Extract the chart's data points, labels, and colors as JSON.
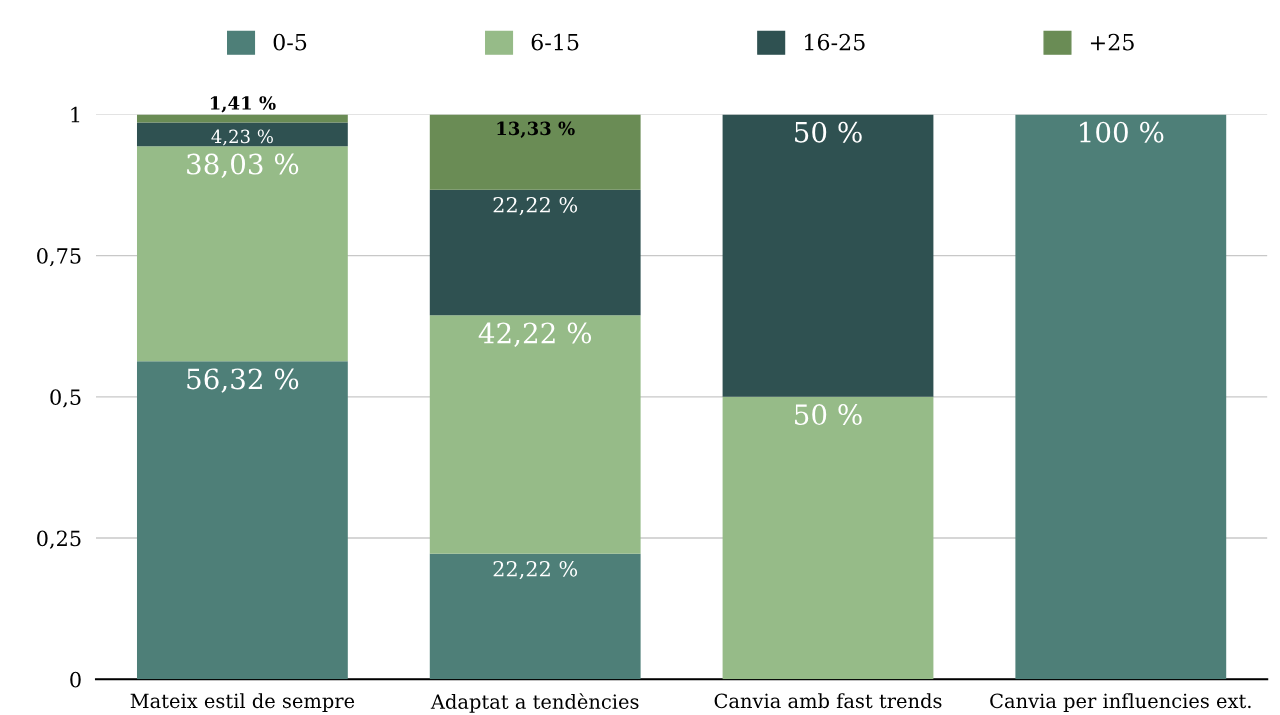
{
  "chart_data": {
    "type": "bar",
    "stacked": true,
    "categories": [
      "Mateix estil de sempre",
      "Adaptat a tendències",
      "Canvia amb fast trends",
      "Canvia per influencies ext."
    ],
    "series": [
      {
        "name": "0-5",
        "color": "#4e7f78",
        "values": [
          0.5632,
          0.2222,
          0,
          1
        ],
        "value_labels": [
          "56,32 %",
          "22,22 %",
          null,
          "100 %"
        ]
      },
      {
        "name": "6-15",
        "color": "#96bb88",
        "values": [
          0.3803,
          0.4222,
          0.5,
          0
        ],
        "value_labels": [
          "38,03 %",
          "42,22 %",
          "50 %",
          null
        ]
      },
      {
        "name": "16-25",
        "color": "#2f5151",
        "values": [
          0.0423,
          0.2222,
          0.5,
          0
        ],
        "value_labels": [
          "4,23 %",
          "22,22 %",
          "50 %",
          null
        ]
      },
      {
        "name": "+25",
        "color": "#6a8c55",
        "values": [
          0.0141,
          0.1333,
          0,
          0
        ],
        "value_labels": [
          "1,41 %",
          "13,33 %",
          null,
          null
        ]
      }
    ],
    "ylim": [
      0,
      1
    ],
    "yticks": [
      0,
      {
        "value": 0.25,
        "label": "0,25"
      },
      {
        "value": 0.5,
        "label": "0,5"
      },
      {
        "value": 0.75,
        "label": "0,75"
      },
      1
    ],
    "grid": "y",
    "legend": "top"
  }
}
